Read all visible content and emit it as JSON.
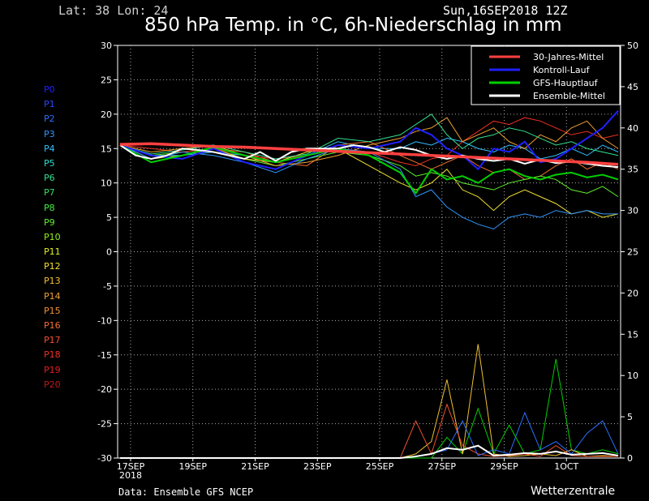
{
  "header": {
    "location": "Lat: 38 Lon: 24",
    "run": "Sun,16SEP2018 12Z",
    "title": "850 hPa Temp. in °C, 6h-Niederschlag in mm"
  },
  "footer": {
    "source": "Data: Ensemble GFS NCEP",
    "brand": "Wetterzentrale"
  },
  "members": [
    {
      "label": "P0",
      "color": "#2020ff"
    },
    {
      "label": "P1",
      "color": "#2848ff"
    },
    {
      "label": "P2",
      "color": "#2870ff"
    },
    {
      "label": "P3",
      "color": "#3098ff"
    },
    {
      "label": "P4",
      "color": "#30c0ff"
    },
    {
      "label": "P5",
      "color": "#30e0d0"
    },
    {
      "label": "P6",
      "color": "#30e090"
    },
    {
      "label": "P7",
      "color": "#30e060"
    },
    {
      "label": "P8",
      "color": "#40f040"
    },
    {
      "label": "P9",
      "color": "#60f030"
    },
    {
      "label": "P10",
      "color": "#90f020"
    },
    {
      "label": "P11",
      "color": "#e0f020"
    },
    {
      "label": "P12",
      "color": "#f0e030"
    },
    {
      "label": "P13",
      "color": "#f0c030"
    },
    {
      "label": "P14",
      "color": "#f0a030"
    },
    {
      "label": "P15",
      "color": "#f09030"
    },
    {
      "label": "P16",
      "color": "#f07030"
    },
    {
      "label": "P17",
      "color": "#f05030"
    },
    {
      "label": "P18",
      "color": "#f03020"
    },
    {
      "label": "P19",
      "color": "#e02020"
    },
    {
      "label": "P20",
      "color": "#c01818"
    }
  ],
  "chart_data": {
    "type": "line",
    "title": "850 hPa Temp. in °C, 6h-Niederschlag in mm",
    "x_tick_labels": [
      "17SEP\n2018",
      "19SEP",
      "21SEP",
      "23SEP",
      "25SEP",
      "27SEP",
      "29SEP",
      "1OCT"
    ],
    "left_axis": {
      "range": [
        -30,
        30
      ],
      "ticks": [
        30,
        25,
        20,
        15,
        10,
        5,
        0,
        -5,
        -10,
        -15,
        -20,
        -25,
        -30
      ],
      "quantity": "temperature °C"
    },
    "right_axis": {
      "range": [
        0,
        50
      ],
      "ticks": [
        50,
        45,
        40,
        35,
        30,
        25,
        20,
        15,
        10,
        5,
        0
      ],
      "quantity": "precipitation mm"
    },
    "x_range_days": [
      0,
      16
    ],
    "grid": true,
    "legend_position": "top-right",
    "legend": [
      {
        "name": "30-Jahres-Mittel",
        "color": "#ff4040"
      },
      {
        "name": "Kontroll-Lauf",
        "color": "#2020ff"
      },
      {
        "name": "GFS-Hauptlauf",
        "color": "#00d000"
      },
      {
        "name": "Ensemble-Mittel",
        "color": "#ffffff"
      }
    ],
    "series": [
      {
        "name": "30-Jahres-Mittel",
        "color": "#ff4040",
        "x": [
          0,
          1,
          2,
          3,
          4,
          5,
          6,
          7,
          8,
          9,
          10,
          11,
          12,
          13,
          14,
          15,
          16
        ],
        "y": [
          15.6,
          15.7,
          15.5,
          15.3,
          15.2,
          15.0,
          14.8,
          14.6,
          14.4,
          14.2,
          14.0,
          13.8,
          13.6,
          13.4,
          13.2,
          13.0,
          12.7
        ]
      },
      {
        "name": "Ensemble-Mittel",
        "color": "#ffffff",
        "x": [
          0,
          0.5,
          1,
          1.5,
          2,
          2.5,
          3,
          3.5,
          4,
          4.5,
          5,
          5.5,
          6,
          6.5,
          7,
          7.5,
          8,
          8.5,
          9,
          9.5,
          10,
          10.5,
          11,
          11.5,
          12,
          12.5,
          13,
          13.5,
          14,
          14.5,
          15,
          15.5,
          16
        ],
        "y": [
          15.5,
          14.0,
          13.5,
          14.0,
          15.0,
          14.8,
          14.5,
          14.0,
          13.5,
          14.5,
          13.2,
          14.5,
          15.0,
          15.0,
          15.0,
          15.5,
          15.2,
          14.5,
          15.2,
          14.8,
          14.0,
          13.5,
          14.0,
          13.5,
          13.2,
          13.5,
          12.8,
          13.4,
          12.9,
          13.1,
          12.8,
          12.5,
          12.3
        ]
      },
      {
        "name": "GFS-Hauptlauf",
        "color": "#00d000",
        "x": [
          0,
          1,
          2,
          3,
          4,
          5,
          6,
          7,
          8,
          9,
          9.5,
          10,
          10.5,
          11,
          11.5,
          12,
          12.5,
          13,
          13.5,
          14,
          14.5,
          15,
          15.5,
          16
        ],
        "y": [
          15.5,
          13.0,
          14.0,
          15.2,
          14.0,
          13.0,
          14.0,
          15.0,
          14.0,
          11.5,
          8.5,
          12.0,
          10.5,
          11.0,
          10.0,
          11.5,
          12.0,
          11.0,
          10.5,
          11.2,
          11.5,
          10.8,
          11.2,
          10.5
        ]
      },
      {
        "name": "Kontroll-Lauf",
        "color": "#2020ff",
        "x": [
          0,
          1,
          2,
          3,
          4,
          5,
          6,
          7,
          8,
          9,
          9.5,
          10,
          10.5,
          11,
          11.5,
          12,
          12.5,
          13,
          13.5,
          14,
          14.5,
          15,
          15.5,
          16
        ],
        "y": [
          15.5,
          14.0,
          13.5,
          15.0,
          13.0,
          12.0,
          14.0,
          15.5,
          15.0,
          16.0,
          18.0,
          17.0,
          15.0,
          14.0,
          12.0,
          15.0,
          14.5,
          16.0,
          13.0,
          13.5,
          15.0,
          16.5,
          18.0,
          20.5
        ]
      },
      {
        "name": "P3",
        "color": "#3098ff",
        "x": [
          0,
          1,
          2,
          3,
          4,
          5,
          6,
          7,
          8,
          9,
          9.5,
          10,
          10.5,
          11,
          11.5,
          12,
          12.5,
          13,
          13.5,
          14,
          14.5,
          15,
          15.5,
          16
        ],
        "y": [
          15.5,
          13.5,
          14.5,
          14.0,
          13.0,
          11.5,
          13.5,
          15.0,
          14.5,
          12.0,
          8.0,
          9.0,
          6.5,
          5.0,
          4.0,
          3.3,
          5.0,
          5.5,
          5.0,
          6.0,
          5.5,
          6.0,
          5.5,
          5.5
        ]
      },
      {
        "name": "P6",
        "color": "#30e090",
        "x": [
          0,
          1,
          2,
          3,
          4,
          5,
          6,
          7,
          8,
          9,
          9.5,
          10,
          10.5,
          11,
          11.5,
          12,
          12.5,
          13,
          13.5,
          14,
          14.5,
          15,
          15.5,
          16
        ],
        "y": [
          15.5,
          14.2,
          14.8,
          15.5,
          14.5,
          13.5,
          14.2,
          16.5,
          16.0,
          17.0,
          18.5,
          20.0,
          17.0,
          15.0,
          16.5,
          17.0,
          18.0,
          17.5,
          16.5,
          15.5,
          16.0,
          15.0,
          14.5,
          14.0
        ]
      },
      {
        "name": "P12",
        "color": "#f0e030",
        "x": [
          0,
          1,
          2,
          3,
          4,
          5,
          6,
          7,
          8,
          9,
          9.5,
          10,
          10.5,
          11,
          11.5,
          12,
          12.5,
          13,
          13.5,
          14,
          14.5,
          15,
          15.5,
          16
        ],
        "y": [
          15.5,
          13.5,
          14.0,
          15.0,
          13.5,
          13.0,
          14.5,
          15.0,
          12.5,
          10.0,
          9.0,
          10.0,
          12.0,
          9.0,
          8.0,
          6.0,
          8.0,
          9.0,
          8.0,
          7.0,
          5.5,
          6.0,
          5.0,
          5.5
        ]
      },
      {
        "name": "P14",
        "color": "#f0a030",
        "x": [
          0,
          1,
          2,
          3,
          4,
          5,
          6,
          7,
          8,
          9,
          9.5,
          10,
          10.5,
          11,
          11.5,
          12,
          12.5,
          13,
          13.5,
          14,
          14.5,
          15,
          15.5,
          16
        ],
        "y": [
          15.5,
          14.5,
          15.0,
          15.5,
          14.0,
          12.5,
          13.0,
          14.0,
          15.5,
          16.5,
          17.5,
          18.0,
          19.5,
          16.0,
          17.0,
          18.0,
          16.0,
          15.0,
          17.0,
          16.0,
          18.0,
          19.0,
          16.5,
          15.0
        ]
      },
      {
        "name": "P18",
        "color": "#f03020",
        "x": [
          0,
          1,
          2,
          3,
          4,
          5,
          6,
          7,
          8,
          9,
          9.5,
          10,
          10.5,
          11,
          11.5,
          12,
          12.5,
          13,
          13.5,
          14,
          14.5,
          15,
          15.5,
          16
        ],
        "y": [
          15.5,
          15.0,
          14.5,
          15.0,
          14.0,
          13.5,
          14.0,
          15.0,
          14.5,
          13.0,
          12.5,
          13.5,
          14.0,
          16.0,
          17.5,
          19.0,
          18.5,
          19.5,
          19.0,
          18.0,
          17.0,
          17.5,
          16.5,
          17.0
        ]
      },
      {
        "name": "P9",
        "color": "#60f030",
        "x": [
          0,
          1,
          2,
          3,
          4,
          5,
          6,
          7,
          8,
          9,
          9.5,
          10,
          10.5,
          11,
          11.5,
          12,
          12.5,
          13,
          13.5,
          14,
          14.5,
          15,
          15.5,
          16
        ],
        "y": [
          15.5,
          14.0,
          14.5,
          15.0,
          13.5,
          12.5,
          13.5,
          14.5,
          14.0,
          12.5,
          11.0,
          11.5,
          11.0,
          10.0,
          9.5,
          9.0,
          10.0,
          10.5,
          11.0,
          10.5,
          9.0,
          8.5,
          9.5,
          8.0
        ]
      },
      {
        "name": "P16",
        "color": "#f07030",
        "x": [
          0,
          1,
          2,
          3,
          4,
          5,
          6,
          7,
          8,
          9,
          9.5,
          10,
          10.5,
          11,
          11.5,
          12,
          12.5,
          13,
          13.5,
          14,
          14.5,
          15,
          15.5,
          16
        ],
        "y": [
          15.5,
          13.0,
          14.0,
          15.0,
          14.5,
          13.0,
          12.5,
          15.5,
          16.0,
          14.0,
          13.0,
          12.0,
          13.0,
          14.0,
          12.5,
          11.5,
          12.0,
          10.5,
          11.0,
          12.5,
          13.5,
          12.0,
          13.0,
          12.0
        ]
      },
      {
        "name": "P4",
        "color": "#30c0ff",
        "x": [
          0,
          1,
          2,
          3,
          4,
          5,
          6,
          7,
          8,
          9,
          9.5,
          10,
          10.5,
          11,
          11.5,
          12,
          12.5,
          13,
          13.5,
          14,
          14.5,
          15,
          15.5,
          16
        ],
        "y": [
          15.5,
          14.0,
          14.0,
          14.5,
          14.0,
          13.0,
          14.0,
          16.0,
          15.0,
          15.0,
          16.0,
          15.5,
          16.5,
          16.0,
          15.0,
          14.5,
          15.5,
          15.0,
          13.5,
          14.0,
          15.0,
          14.0,
          15.5,
          14.5
        ]
      }
    ],
    "precipitation": [
      {
        "name": "GFS-Hauptlauf",
        "color": "#00d000",
        "x": [
          0,
          9,
          10,
          10.5,
          11,
          11.5,
          12,
          12.5,
          13,
          13.5,
          14,
          14.5,
          15,
          15.5,
          16
        ],
        "y": [
          0,
          0,
          0,
          2.5,
          0.5,
          6.0,
          0.5,
          4.0,
          0.5,
          1.0,
          12.0,
          1.0,
          0.5,
          1.0,
          0.5
        ]
      },
      {
        "name": "P13",
        "color": "#f0c030",
        "x": [
          0,
          9,
          9.5,
          10,
          10.5,
          11,
          11.5,
          12,
          12.5,
          13,
          13.5,
          14,
          14.5,
          15,
          15.5,
          16
        ],
        "y": [
          0,
          0,
          0.5,
          2.0,
          9.5,
          0.5,
          13.8,
          0.5,
          0.2,
          0.3,
          0.5,
          0.3,
          1.0,
          0.2,
          0.3,
          0.2
        ]
      },
      {
        "name": "P17",
        "color": "#f05030",
        "x": [
          0,
          9,
          9.5,
          10,
          10.5,
          11,
          11.5,
          12,
          12.5,
          13,
          13.5,
          14,
          14.5,
          15,
          15.5,
          16
        ],
        "y": [
          0,
          0,
          4.5,
          0.5,
          6.5,
          1.5,
          0.5,
          0.2,
          0.3,
          0.5,
          0.2,
          1.5,
          0.3,
          0.2,
          0.2,
          0.2
        ]
      },
      {
        "name": "P2",
        "color": "#2870ff",
        "x": [
          0,
          9,
          9.5,
          10,
          10.5,
          11,
          11.5,
          12,
          12.5,
          13,
          13.5,
          14,
          14.5,
          15,
          15.5,
          16
        ],
        "y": [
          0,
          0,
          0.2,
          0.5,
          1.0,
          4.5,
          0.3,
          1.0,
          0.5,
          5.5,
          1.0,
          2.0,
          0.5,
          3.0,
          4.5,
          0.5
        ]
      },
      {
        "name": "Ensemble-Mittel",
        "color": "#ffffff",
        "x": [
          0,
          9,
          9.5,
          10,
          10.5,
          11,
          11.5,
          12,
          12.5,
          13,
          13.5,
          14,
          14.5,
          15,
          15.5,
          16
        ],
        "y": [
          0,
          0,
          0.2,
          0.5,
          1.2,
          1.0,
          1.5,
          0.3,
          0.4,
          0.6,
          0.5,
          0.8,
          0.4,
          0.5,
          0.6,
          0.3
        ]
      }
    ]
  }
}
